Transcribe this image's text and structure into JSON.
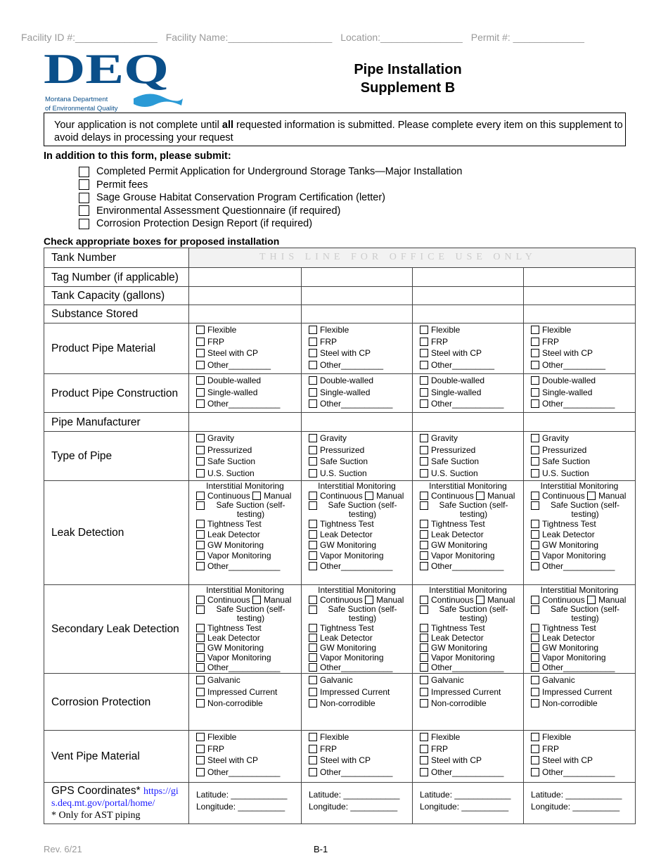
{
  "header": {
    "facility_id": "Facility ID #:_______________",
    "facility_name": "Facility Name:___________________",
    "location": "Location:_______________",
    "permit": "Permit #: _____________"
  },
  "logo": {
    "letters": "DEQ",
    "line1": "Montana Department",
    "line2": "of Environmental Quality",
    "color": "#0a4f8a",
    "wave_color": "#2a9ad6"
  },
  "title": {
    "line1": "Pipe Installation",
    "line2": "Supplement B"
  },
  "notice": {
    "pre": "Your application is not complete until ",
    "bold": "all",
    "post": " requested information is submitted.  Please complete every item on this supplement to avoid delays in processing your request"
  },
  "submit": {
    "heading": "In addition to this form, please submit:",
    "items": [
      "Completed Permit Application for Underground Storage Tanks—Major Installation",
      "Permit fees",
      "Sage Grouse Habitat Conservation Program Certification (letter)",
      "Environmental Assessment Questionnaire (if required)",
      "Corrosion Protection Design Report (if required)"
    ]
  },
  "check_heading": "Check appropriate boxes for proposed installation",
  "office_use": "THIS LINE FOR OFFICE USE ONLY",
  "rows": [
    {
      "label": "Tank Number",
      "type": "office",
      "h": 28
    },
    {
      "label": "Tag Number (if applicable)",
      "type": "blank",
      "h": 27
    },
    {
      "label": "Tank Capacity (gallons)",
      "type": "blank",
      "h": 26
    },
    {
      "label": "Substance Stored",
      "type": "blank",
      "h": 26
    },
    {
      "label": "Product Pipe Material",
      "type": "opts",
      "h": 72,
      "options": [
        "Flexible",
        "FRP",
        "Steel with CP",
        "Other_________"
      ]
    },
    {
      "label": "Product Pipe Construction",
      "type": "opts",
      "h": 55,
      "options": [
        "Double-walled",
        "Single-walled",
        "Other___________"
      ]
    },
    {
      "label": "Pipe Manufacturer",
      "type": "blank",
      "h": 27
    },
    {
      "label": "Type of Pipe",
      "type": "opts",
      "h": 70,
      "options": [
        "Gravity",
        "Pressurized",
        "Safe Suction",
        "U.S. Suction"
      ]
    },
    {
      "label": "Leak Detection",
      "type": "leak",
      "h": 148
    },
    {
      "label": "Secondary Leak Detection",
      "type": "leak",
      "h": 125
    },
    {
      "label": "Corrosion Protection",
      "type": "opts",
      "h": 81,
      "options": [
        "Galvanic",
        "Impressed Current",
        "Non-corrodible"
      ]
    },
    {
      "label": "Vent Pipe Material",
      "type": "opts",
      "h": 74,
      "options": [
        "Flexible",
        "FRP",
        "Steel with CP",
        "Other___________"
      ]
    },
    {
      "label": "GPS Coordinates*",
      "type": "gps",
      "h": 59
    }
  ],
  "leak": {
    "title": "Interstitial Monitoring",
    "continuous": "Continuous",
    "manual": "Manual",
    "options": [
      "Safe Suction (self-testing)",
      "Tightness Test",
      "Leak Detector",
      "GW Monitoring",
      "Vapor Monitoring",
      "Other___________"
    ]
  },
  "gps": {
    "link": "https://gis.deq.mt.gov/portal/home/",
    "note": "* Only for AST piping",
    "latitude": "Latitude: ____________",
    "longitude": "Longitude: __________"
  },
  "footer": {
    "rev": "Rev. 6/21",
    "page": "B-1"
  }
}
